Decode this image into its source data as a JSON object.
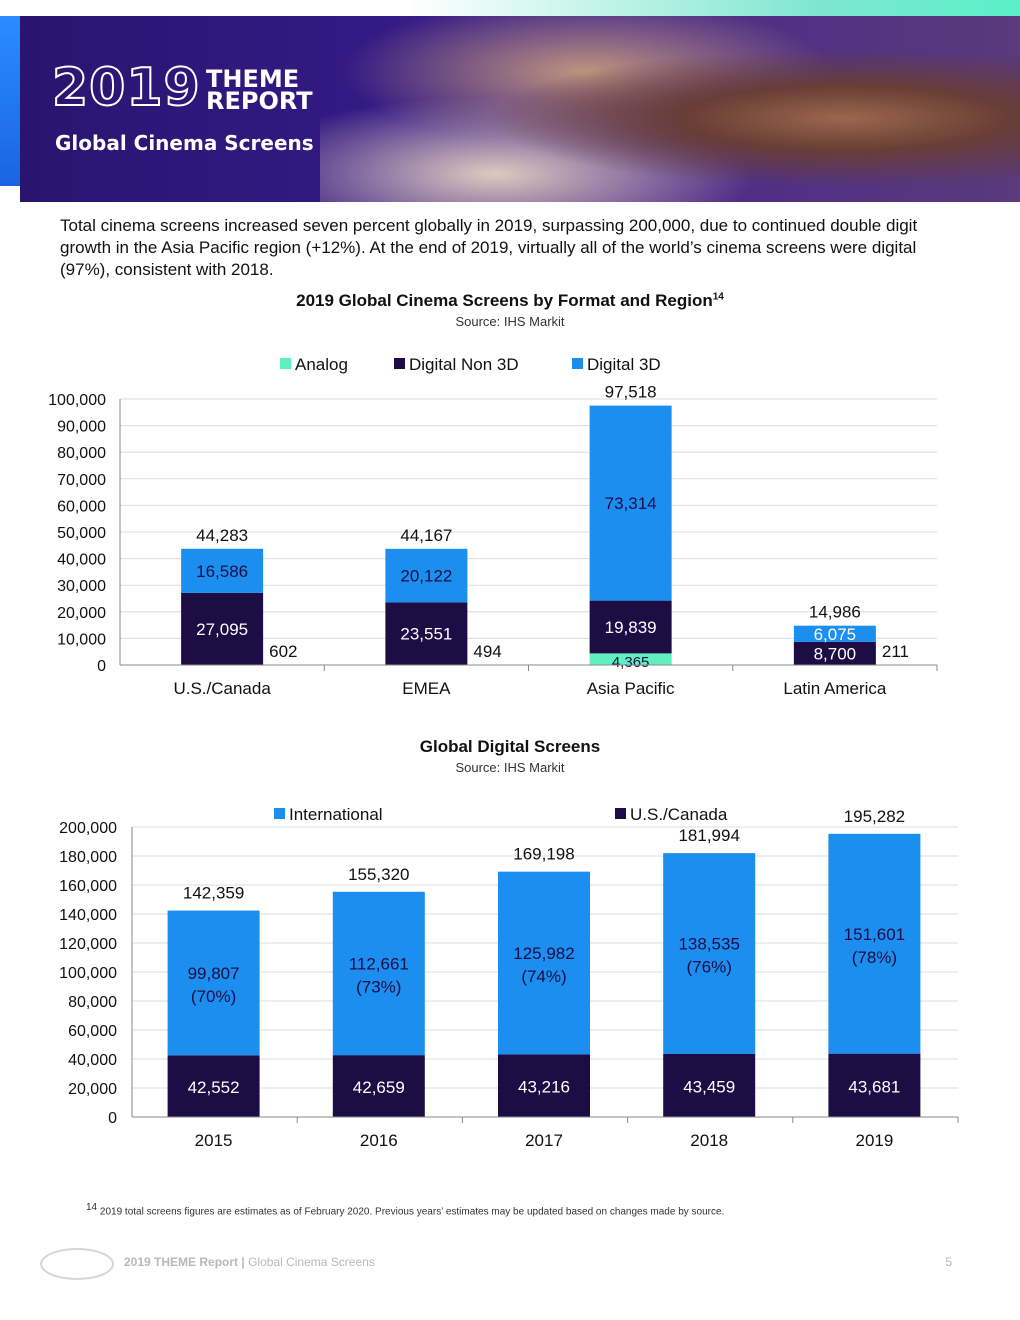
{
  "banner": {
    "year": "2019",
    "theme_line1": "THEME",
    "theme_line2": "REPORT",
    "subtitle": "Global Cinema Screens"
  },
  "intro": "Total cinema screens increased seven percent globally in 2019, surpassing 200,000, due to continued double digit growth in the Asia Pacific region (+12%). At the end of 2019, virtually all of the world’s cinema screens were digital (97%), consistent with 2018.",
  "chart1_title": "2019 Global Cinema Screens by Format and Region",
  "chart1_sup": "14",
  "chart1_source": "Source: IHS Markit",
  "chart2_title": "Global Digital Screens",
  "chart2_source": "Source: IHS Markit",
  "footnote_num": "14",
  "footnote": "2019 total screens figures are estimates as of February 2020. Previous years’ estimates may be updated based on changes made by source.",
  "footer": {
    "report": "2019 THEME Report",
    "sep": " | ",
    "section": "Global Cinema Screens",
    "page": "5"
  },
  "colors": {
    "analog": "#5ff0c0",
    "digital_non3d": "#1e0d45",
    "digital_3d": "#1b8ef0",
    "international": "#1b8ef0",
    "us_canada": "#1e0d45"
  },
  "chart_data": [
    {
      "type": "bar",
      "stacked": true,
      "title": "2019 Global Cinema Screens by Format and Region",
      "categories": [
        "U.S./Canada",
        "EMEA",
        "Asia Pacific",
        "Latin America"
      ],
      "series": [
        {
          "name": "Analog",
          "values": [
            602,
            494,
            4365,
            211
          ],
          "labels": [
            "602",
            "494",
            "4,365",
            "211"
          ]
        },
        {
          "name": "Digital Non 3D",
          "values": [
            27095,
            23551,
            19839,
            8700
          ],
          "labels": [
            "27,095",
            "23,551",
            "19,839",
            "8,700"
          ]
        },
        {
          "name": "Digital 3D",
          "values": [
            16586,
            20122,
            73314,
            6075
          ],
          "labels": [
            "16,586",
            "20,122",
            "73,314",
            "6,075"
          ]
        }
      ],
      "totals": [
        "44,283",
        "44,167",
        "97,518",
        "14,986"
      ],
      "ylim": [
        0,
        100000
      ],
      "yticks": [
        "0",
        "10,000",
        "20,000",
        "30,000",
        "40,000",
        "50,000",
        "60,000",
        "70,000",
        "80,000",
        "90,000",
        "100,000"
      ],
      "legend": "top"
    },
    {
      "type": "bar",
      "stacked": true,
      "title": "Global Digital Screens",
      "categories": [
        "2015",
        "2016",
        "2017",
        "2018",
        "2019"
      ],
      "series": [
        {
          "name": "U.S./Canada",
          "values": [
            42552,
            42659,
            43216,
            43459,
            43681
          ],
          "labels": [
            "42,552",
            "42,659",
            "43,216",
            "43,459",
            "43,681"
          ]
        },
        {
          "name": "International",
          "values": [
            99807,
            112661,
            125982,
            138535,
            151601
          ],
          "labels": [
            "99,807",
            "112,661",
            "125,982",
            "138,535",
            "151,601"
          ],
          "shares": [
            "(70%)",
            "(73%)",
            "(74%)",
            "(76%)",
            "(78%)"
          ]
        }
      ],
      "totals": [
        "142,359",
        "155,320",
        "169,198",
        "181,994",
        "195,282"
      ],
      "ylim": [
        0,
        200000
      ],
      "yticks": [
        "0",
        "20,000",
        "40,000",
        "60,000",
        "80,000",
        "100,000",
        "120,000",
        "140,000",
        "160,000",
        "180,000",
        "200,000"
      ],
      "legend_order": [
        "International",
        "U.S./Canada"
      ],
      "legend": "top"
    }
  ]
}
